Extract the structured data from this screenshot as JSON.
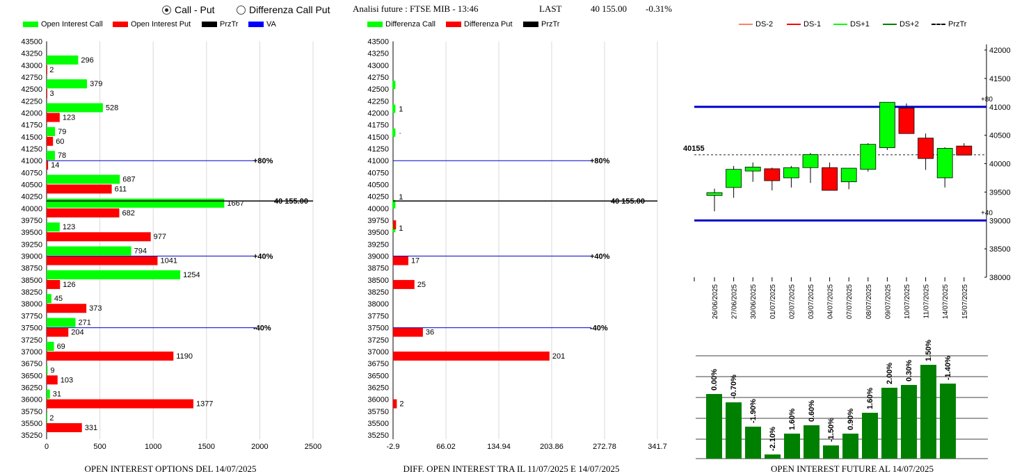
{
  "header": {
    "radio_call_put": "Call - Put",
    "radio_diff": "Differenza Call Put",
    "selected": "call_put",
    "title": "Analisi future : FTSE MIB - 13:46",
    "last_label": "LAST",
    "last_value": "40 155.00",
    "change": "-0.31%"
  },
  "colors": {
    "green": "#00ff00",
    "red": "#ff0000",
    "black": "#000000",
    "blue": "#0000ff",
    "dark_green": "#008000",
    "navy": "#0000cc"
  },
  "chart_data": [
    {
      "type": "bar",
      "orientation": "horizontal",
      "title": "OPEN INTEREST OPTIONS DEL 14/07/2025",
      "legend": [
        "Open Interest Call",
        "Open Interest Put",
        "PrzTr",
        "VA"
      ],
      "y_ticks": [
        43500,
        43250,
        43000,
        42750,
        42500,
        42250,
        42000,
        41750,
        41500,
        41250,
        41000,
        40750,
        40500,
        40250,
        40000,
        39750,
        39500,
        39250,
        39000,
        38750,
        38500,
        38250,
        38000,
        37750,
        37500,
        37250,
        37000,
        36750,
        36500,
        36250,
        36000,
        35750,
        35500,
        35250
      ],
      "x_ticks": [
        "0",
        "500",
        "1000",
        "1500",
        "2000",
        "2500"
      ],
      "xlim": [
        0,
        2850
      ],
      "series": [
        {
          "name": "Open Interest Call",
          "data": [
            [
              43000,
              296
            ],
            [
              42500,
              379
            ],
            [
              42000,
              528
            ],
            [
              41500,
              79
            ],
            [
              41000,
              78
            ],
            [
              40500,
              687
            ],
            [
              40000,
              1667
            ],
            [
              39500,
              123
            ],
            [
              39000,
              794
            ],
            [
              38500,
              1254
            ],
            [
              38000,
              45
            ],
            [
              37500,
              271
            ],
            [
              37000,
              69
            ],
            [
              36500,
              9
            ],
            [
              36000,
              31
            ],
            [
              35500,
              2
            ]
          ]
        },
        {
          "name": "Open Interest Put",
          "data": [
            [
              43000,
              2
            ],
            [
              42500,
              3
            ],
            [
              42000,
              123
            ],
            [
              41500,
              60
            ],
            [
              41000,
              14
            ],
            [
              40500,
              611
            ],
            [
              40000,
              682
            ],
            [
              39500,
              977
            ],
            [
              39000,
              1041
            ],
            [
              38500,
              126
            ],
            [
              38000,
              373
            ],
            [
              37500,
              204
            ],
            [
              37000,
              1190
            ],
            [
              36500,
              103
            ],
            [
              36000,
              1377
            ],
            [
              35500,
              331
            ]
          ]
        }
      ],
      "lines": [
        {
          "level": 41000,
          "label": "+80%",
          "color": "blue"
        },
        {
          "level": 40155,
          "label": "40 155.00",
          "color": "black"
        },
        {
          "level": 39000,
          "label": "+40%",
          "color": "blue"
        },
        {
          "level": 37500,
          "label": "-40%",
          "color": "blue"
        }
      ]
    },
    {
      "type": "bar",
      "orientation": "horizontal",
      "title": "DIFF. OPEN INTEREST TRA IL 11/07/2025 E 14/07/2025",
      "legend": [
        "Differenza Call",
        "Differenza Put",
        "PrzTr"
      ],
      "y_ticks": [
        43500,
        43250,
        43000,
        42750,
        42500,
        42250,
        42000,
        41750,
        41500,
        41250,
        41000,
        40750,
        40500,
        40250,
        40000,
        39750,
        39500,
        39250,
        39000,
        38750,
        38500,
        38250,
        38000,
        37750,
        37500,
        37250,
        37000,
        36750,
        36500,
        36250,
        36000,
        35750,
        35500,
        35250
      ],
      "x_ticks": [
        "-2.9",
        "66.02",
        "134.94",
        "203.86",
        "272.78",
        "341.7"
      ],
      "xlim": [
        -2.9,
        341.7
      ],
      "series": [
        {
          "name": "Differenza Call",
          "data": [
            [
              42500,
              1
            ],
            [
              42000,
              1
            ],
            [
              41500,
              1
            ],
            [
              40000,
              1
            ],
            [
              39500,
              1
            ]
          ]
        },
        {
          "name": "Differenza Put",
          "data": [
            [
              39750,
              1
            ],
            [
              39000,
              17
            ],
            [
              38500,
              25
            ],
            [
              37500,
              36
            ],
            [
              37000,
              201
            ],
            [
              36000,
              2
            ]
          ]
        }
      ],
      "value_labels": [
        {
          "level": 42000,
          "text": "1"
        },
        {
          "level": 41500,
          "text": "·"
        },
        {
          "level": 40155,
          "text": "1"
        },
        {
          "level": 39500,
          "text": "1"
        },
        {
          "level": 39000,
          "text": "17"
        },
        {
          "level": 38500,
          "text": "25"
        },
        {
          "level": 37500,
          "text": "36"
        },
        {
          "level": 37000,
          "text": "201"
        },
        {
          "level": 36000,
          "text": "2"
        }
      ],
      "lines": [
        {
          "level": 41000,
          "label": "+80%",
          "color": "blue"
        },
        {
          "level": 40155,
          "label": "40 155.00",
          "color": "black"
        },
        {
          "level": 39000,
          "label": "+40%",
          "color": "blue"
        },
        {
          "level": 37500,
          "label": "-40%",
          "color": "blue"
        }
      ]
    },
    {
      "type": "candlestick",
      "legend": [
        "DS-2",
        "DS-1",
        "DS+1",
        "DS+2",
        "PrzTr"
      ],
      "y_ticks": [
        42000,
        41500,
        41000,
        40500,
        40000,
        39500,
        39000,
        38500,
        38000
      ],
      "ylim": [
        38000,
        42100
      ],
      "dates": [
        "26/06/2025",
        "27/06/2025",
        "30/06/2025",
        "01/07/2025",
        "02/07/2025",
        "03/07/2025",
        "04/07/2025",
        "07/07/2025",
        "08/07/2025",
        "09/07/2025",
        "10/07/2025",
        "11/07/2025",
        "14/07/2025",
        "15/07/2025"
      ],
      "candles": [
        {
          "open": 39440,
          "close": 39490,
          "high": 39560,
          "low": 39160
        },
        {
          "open": 39580,
          "close": 39900,
          "high": 39960,
          "low": 39400
        },
        {
          "open": 39870,
          "close": 39940,
          "high": 40020,
          "low": 39680
        },
        {
          "open": 39910,
          "close": 39700,
          "high": 39930,
          "low": 39530
        },
        {
          "open": 39750,
          "close": 39930,
          "high": 39960,
          "low": 39580
        },
        {
          "open": 39930,
          "close": 40160,
          "high": 40190,
          "low": 39660
        },
        {
          "open": 39930,
          "close": 39530,
          "high": 40020,
          "low": 39530
        },
        {
          "open": 39680,
          "close": 39920,
          "high": 39920,
          "low": 39550
        },
        {
          "open": 39900,
          "close": 40340,
          "high": 40360,
          "low": 39860
        },
        {
          "open": 40280,
          "close": 41080,
          "high": 41080,
          "low": 40240
        },
        {
          "open": 40980,
          "close": 40530,
          "high": 41060,
          "low": 40530
        },
        {
          "open": 40450,
          "close": 40090,
          "high": 40530,
          "low": 39890
        },
        {
          "open": 39750,
          "close": 40270,
          "high": 40290,
          "low": 39580
        },
        {
          "open": 40310,
          "close": 40150,
          "high": 40360,
          "low": 40150
        }
      ],
      "levels": [
        {
          "value": 41000,
          "label": "+80"
        },
        {
          "value": 39000,
          "label": "+40"
        }
      ],
      "przTr": {
        "value": 40155,
        "label": "40155"
      }
    },
    {
      "type": "bar",
      "title": "OPEN INTEREST FUTURE AL 14/07/2025",
      "categories": [
        "26/06/2025",
        "27/06/2025",
        "30/06/2025",
        "01/07/2025",
        "02/07/2025",
        "03/07/2025",
        "04/07/2025",
        "07/07/2025",
        "08/07/2025",
        "09/07/2025",
        "10/07/2025",
        "11/07/2025",
        "14/07/2025"
      ],
      "values": [
        93,
        81,
        46,
        6,
        36,
        48,
        19,
        36,
        66,
        102,
        106,
        135,
        108
      ],
      "value_labels": [
        "0.00%",
        "-0.70%",
        "-1.90%",
        "-2.10%",
        "1.60%",
        "0.60%",
        "-1.50%",
        "0.90%",
        "1.60%",
        "2.00%",
        "0.30%",
        "1.50%",
        "-1.40%"
      ]
    }
  ]
}
